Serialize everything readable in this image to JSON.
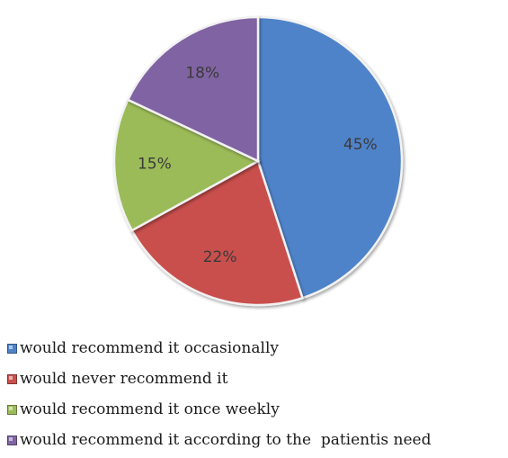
{
  "chart_data": {
    "type": "pie",
    "slices": [
      {
        "label": "would recommend it occasionally",
        "value": 45,
        "value_label": "45%",
        "color": "#4f83c9"
      },
      {
        "label": "would never recommend it",
        "value": 22,
        "value_label": "22%",
        "color": "#c9504d"
      },
      {
        "label": "would recommend it once weekly",
        "value": 15,
        "value_label": "15%",
        "color": "#9bbb59"
      },
      {
        "label": "would recommend it according to the  patientis need",
        "value": 18,
        "value_label": "18%",
        "color": "#8064a2"
      }
    ],
    "legend_position": "bottom",
    "start_angle_deg": 0,
    "direction": "clockwise"
  }
}
